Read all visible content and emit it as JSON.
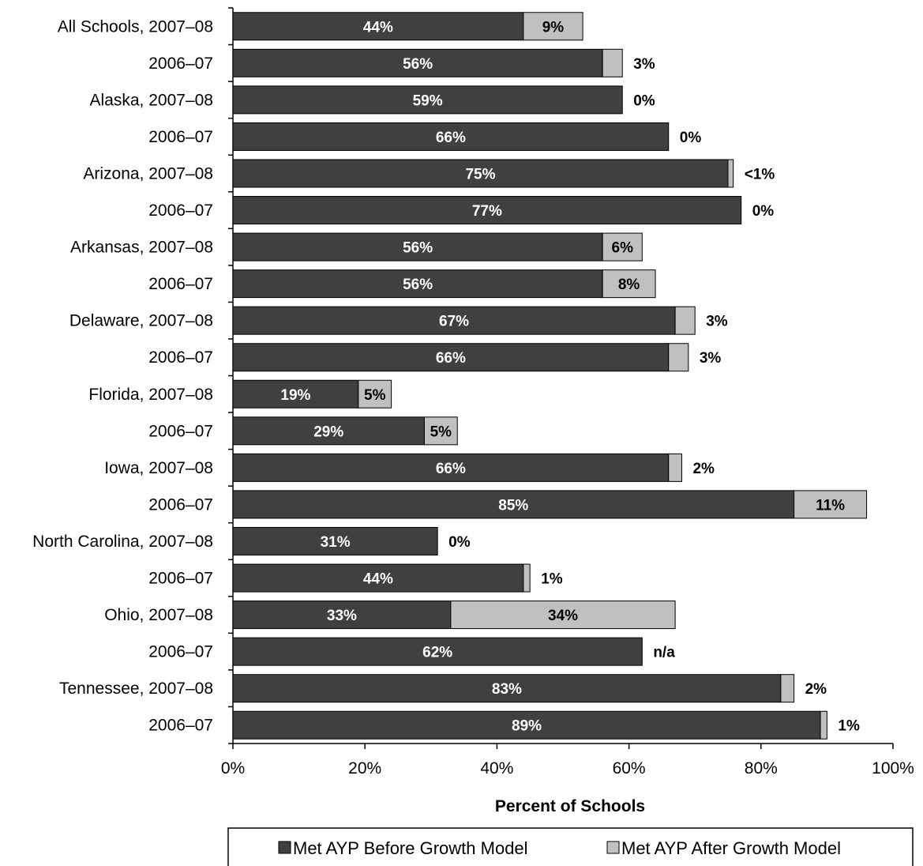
{
  "chart_data": {
    "type": "bar",
    "orientation": "horizontal",
    "stacked": true,
    "categories": [
      "All Schools, 2007–08",
      "2006–07",
      "Alaska, 2007–08",
      "2006–07",
      "Arizona, 2007–08",
      "2006–07",
      "Arkansas, 2007–08",
      "2006–07",
      "Delaware, 2007–08",
      "2006–07",
      "Florida, 2007–08",
      "2006–07",
      "Iowa, 2007–08",
      "2006–07",
      "North Carolina, 2007–08",
      "2006–07",
      "Ohio, 2007–08",
      "2006–07",
      "Tennessee, 2007–08",
      "2006–07"
    ],
    "series": [
      {
        "name": "Met AYP Before Growth Model",
        "color": "#404040",
        "values": [
          44,
          56,
          59,
          66,
          75,
          77,
          56,
          56,
          67,
          66,
          19,
          29,
          66,
          85,
          31,
          44,
          33,
          62,
          83,
          89
        ],
        "labels": [
          "44%",
          "56%",
          "59%",
          "66%",
          "75%",
          "77%",
          "56%",
          "56%",
          "67%",
          "66%",
          "19%",
          "29%",
          "66%",
          "85%",
          "31%",
          "44%",
          "33%",
          "62%",
          "83%",
          "89%"
        ]
      },
      {
        "name": "Met AYP After Growth Model",
        "color": "#c0c0c0",
        "values": [
          9,
          3,
          0,
          0,
          0.8,
          0,
          6,
          8,
          3,
          3,
          5,
          5,
          2,
          11,
          0,
          1,
          34,
          0,
          2,
          1
        ],
        "labels": [
          "9%",
          "3%",
          "0%",
          "0%",
          "<1%",
          "0%",
          "6%",
          "8%",
          "3%",
          "3%",
          "5%",
          "5%",
          "2%",
          "11%",
          "0%",
          "1%",
          "34%",
          "n/a",
          "2%",
          "1%"
        ],
        "label_inside": [
          true,
          false,
          false,
          false,
          false,
          false,
          true,
          true,
          false,
          false,
          true,
          true,
          false,
          true,
          false,
          false,
          true,
          false,
          false,
          false
        ]
      }
    ],
    "xlim": [
      0,
      100
    ],
    "xticks": [
      "0%",
      "20%",
      "40%",
      "60%",
      "80%",
      "100%"
    ],
    "xlabel": "Percent  of Schools",
    "ylabel": "",
    "title": "",
    "legend_position": "bottom"
  }
}
